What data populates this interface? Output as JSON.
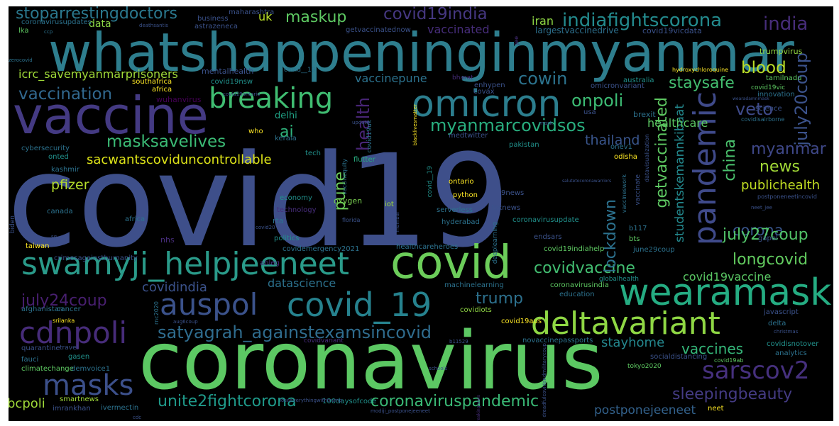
{
  "words": [
    {
      "text": "covid19",
      "color": "#3e4f8a"
    },
    {
      "text": "coronavirus",
      "color": "#5cc863"
    },
    {
      "text": "whatshappeninginmyanmar",
      "color": "#2e7e8e"
    },
    {
      "text": "vaccine",
      "color": "#443a83"
    },
    {
      "text": "omicron",
      "color": "#2c7e8e"
    },
    {
      "text": "covid",
      "color": "#6ccd5a"
    },
    {
      "text": "wearamask",
      "color": "#25ac82"
    },
    {
      "text": "swamyji_helpjeeneet",
      "color": "#2a9b8a"
    },
    {
      "text": "deltavariant",
      "color": "#8fd744"
    },
    {
      "text": "covid_19",
      "color": "#26828e"
    },
    {
      "text": "breaking",
      "color": "#40bd72"
    },
    {
      "text": "auspol",
      "color": "#3b528b"
    },
    {
      "text": "cdnpoli",
      "color": "#472c7a"
    },
    {
      "text": "pandemic",
      "color": "#3f4a8a"
    },
    {
      "text": "sarscov2",
      "color": "#46307e"
    },
    {
      "text": "masks",
      "color": "#3c508b"
    },
    {
      "text": "satyagrah_againstexamsincovid",
      "color": "#2f6c8e"
    },
    {
      "text": "coronaviruspandemic",
      "color": "#3aba76"
    },
    {
      "text": "unite2fightcorona",
      "color": "#1f9a8a"
    },
    {
      "text": "sleepingbeauty",
      "color": "#443b84"
    },
    {
      "text": "vaccines",
      "color": "#35b779"
    },
    {
      "text": "stoparrestingdoctors",
      "color": "#2a788e"
    },
    {
      "text": "indiafightscorona",
      "color": "#238a8d"
    },
    {
      "text": "covid19india",
      "color": "#453781"
    },
    {
      "text": "maskup",
      "color": "#5ec962"
    },
    {
      "text": "india",
      "color": "#472d7b"
    },
    {
      "text": "july20coup",
      "color": "#3b528b"
    },
    {
      "text": "masksavelives",
      "color": "#3bbb75"
    },
    {
      "text": "vaccination",
      "color": "#31688e"
    },
    {
      "text": "cowin",
      "color": "#2c738e"
    },
    {
      "text": "onpoli",
      "color": "#3dbc74"
    },
    {
      "text": "blood",
      "color": "#bade28"
    },
    {
      "text": "staysafe",
      "color": "#44bf70"
    },
    {
      "text": "myanmarcovidsos",
      "color": "#29af7f"
    },
    {
      "text": "trump",
      "color": "#2d718e"
    },
    {
      "text": "health",
      "color": "#482576"
    },
    {
      "text": "veto",
      "color": "#3e4a89"
    },
    {
      "text": "getvaccinated",
      "color": "#5ec962"
    },
    {
      "text": "china",
      "color": "#4ac16d"
    },
    {
      "text": "myanmar",
      "color": "#3f4889"
    },
    {
      "text": "news",
      "color": "#a2da37"
    },
    {
      "text": "publichealth",
      "color": "#c2df23"
    },
    {
      "text": "corona",
      "color": "#39558c"
    },
    {
      "text": "july27coup",
      "color": "#52c569"
    },
    {
      "text": "longcovid",
      "color": "#62cb5f"
    },
    {
      "text": "covidvaccine",
      "color": "#42be71"
    },
    {
      "text": "covid19vaccine",
      "color": "#5ac864"
    },
    {
      "text": "july24coup",
      "color": "#481f70"
    },
    {
      "text": "lockdown",
      "color": "#2c718e"
    },
    {
      "text": "pune",
      "color": "#6ccd5a"
    },
    {
      "text": "ai",
      "color": "#2fb47c"
    },
    {
      "text": "pfizer",
      "color": "#b5de2b"
    },
    {
      "text": "sacwantscoviduncontrollable",
      "color": "#dde318"
    },
    {
      "text": "bcpoli",
      "color": "#a0da39"
    },
    {
      "text": "postponejeeneet",
      "color": "#33628d"
    },
    {
      "text": "studentskemannkibaat",
      "color": "#23898e"
    },
    {
      "text": "thailand",
      "color": "#39558c"
    },
    {
      "text": "healthcare",
      "color": "#5cc863"
    },
    {
      "text": "covidindia",
      "color": "#3b528b"
    },
    {
      "text": "datascience",
      "color": "#2c728e"
    },
    {
      "text": "stayhome",
      "color": "#24878e"
    },
    {
      "text": "icrc_savemyanmarprisoners",
      "color": "#a0da39"
    },
    {
      "text": "vaccinated",
      "color": "#472d7b"
    },
    {
      "text": "vaccinepune",
      "color": "#2c728e"
    },
    {
      "text": "iran",
      "color": "#8fd744"
    },
    {
      "text": "uk",
      "color": "#b8de29"
    },
    {
      "text": "data",
      "color": "#8bd646"
    },
    {
      "text": "delhi",
      "color": "#20a386"
    },
    {
      "text": "largestvaccinedrive",
      "color": "#2d708e"
    },
    {
      "text": "covid19vicdata",
      "color": "#3b528b"
    },
    {
      "text": "trumpvirus",
      "color": "#93d741"
    },
    {
      "text": "mentalhealth",
      "color": "#3b528b"
    },
    {
      "text": "southafrica",
      "color": "#fde725"
    },
    {
      "text": "africa",
      "color": "#fde725"
    },
    {
      "text": "wuhanvirus",
      "color": "#440154"
    },
    {
      "text": "covid19nsw",
      "color": "#21918c"
    },
    {
      "text": "covax",
      "color": "#3b528b"
    },
    {
      "text": "enhypen",
      "color": "#3b528b"
    },
    {
      "text": "omicronvariant",
      "color": "#3b528b"
    },
    {
      "text": "tamilnadu",
      "color": "#5ec962"
    },
    {
      "text": "hydroxychloroquine",
      "color": "#fde725"
    },
    {
      "text": "australia",
      "color": "#21918c"
    },
    {
      "text": "innovation",
      "color": "#2c728e"
    },
    {
      "text": "science",
      "color": "#3b528b"
    },
    {
      "text": "tech",
      "color": "#21918c"
    },
    {
      "text": "who",
      "color": "#fde725"
    },
    {
      "text": "usa",
      "color": "#3b528b"
    },
    {
      "text": "brexit",
      "color": "#2c728e"
    },
    {
      "text": "kerala",
      "color": "#2c728e"
    },
    {
      "text": "medtwitter",
      "color": "#3b528b"
    },
    {
      "text": "cybersecurity",
      "color": "#2c728e"
    },
    {
      "text": "onted",
      "color": "#21918c"
    },
    {
      "text": "flutter",
      "color": "#28ae80"
    },
    {
      "text": "pakistan",
      "color": "#21918c"
    },
    {
      "text": "odisha",
      "color": "#fde725"
    },
    {
      "text": "onev1",
      "color": "#2c728e"
    },
    {
      "text": "kashmir",
      "color": "#2c728e"
    },
    {
      "text": "economy",
      "color": "#21918c"
    },
    {
      "text": "oxygen",
      "color": "#7ad151"
    },
    {
      "text": "iot",
      "color": "#a0da39"
    },
    {
      "text": "ontario",
      "color": "#fde725"
    },
    {
      "text": "python",
      "color": "#fde725"
    },
    {
      "text": "9news",
      "color": "#3b528b"
    },
    {
      "text": "canada",
      "color": "#2c728e"
    },
    {
      "text": "africa",
      "color": "#fde725"
    },
    {
      "text": "rta",
      "color": "#2c728e"
    },
    {
      "text": "serverless",
      "color": "#2c728e"
    },
    {
      "text": "foxnews",
      "color": "#2c728e"
    },
    {
      "text": "coronavirusupdate",
      "color": "#3b528b"
    },
    {
      "text": "technology",
      "color": "#21918c"
    },
    {
      "text": "florida",
      "color": "#472d7b"
    },
    {
      "text": "hyderabad",
      "color": "#3b528b"
    },
    {
      "text": "b117",
      "color": "#2c728e"
    },
    {
      "text": "bts",
      "color": "#2c728e"
    },
    {
      "text": "endsars",
      "color": "#5ec962"
    },
    {
      "text": "nhs",
      "color": "#3b528b"
    },
    {
      "text": "politics",
      "color": "#472d7b"
    },
    {
      "text": "gapol",
      "color": "#21918c"
    },
    {
      "text": "taiwan",
      "color": "#3b528b"
    },
    {
      "text": "covidemergency2021",
      "color": "#fde725"
    },
    {
      "text": "healthcareheroes",
      "color": "#2c728e"
    },
    {
      "text": "covid19indiahelp",
      "color": "#2c728e"
    },
    {
      "text": "globalhealth",
      "color": "#5ec962"
    },
    {
      "text": "crimesagainsthumanity",
      "color": "#21918c"
    },
    {
      "text": "ableg",
      "color": "#3b528b"
    },
    {
      "text": "machinelearning",
      "color": "#472d7b"
    },
    {
      "text": "coronavirusindia",
      "color": "#2c728e"
    },
    {
      "text": "education",
      "color": "#5ec962"
    },
    {
      "text": "javascript",
      "color": "#2c728e"
    },
    {
      "text": "afghanistan",
      "color": "#3b528b"
    },
    {
      "text": "cancer",
      "color": "#2c728e"
    },
    {
      "text": "covidiots",
      "color": "#2c728e"
    },
    {
      "text": "covid19aus",
      "color": "#8fd744"
    },
    {
      "text": "delta",
      "color": "#fde725"
    },
    {
      "text": "srilanka",
      "color": "#2c728e"
    },
    {
      "text": "quarantine",
      "color": "#fde725"
    },
    {
      "text": "travel",
      "color": "#3b528b"
    },
    {
      "text": "novaccinepassports",
      "color": "#3b528b"
    },
    {
      "text": "covidisnotover",
      "color": "#2c728e"
    },
    {
      "text": "analytics",
      "color": "#21918c"
    },
    {
      "text": "fauci",
      "color": "#2c728e"
    },
    {
      "text": "gasen",
      "color": "#2c728e"
    },
    {
      "text": "socialdistancing",
      "color": "#21918c"
    },
    {
      "text": "covid19ab",
      "color": "#3b528b"
    },
    {
      "text": "climatechange",
      "color": "#5ec962"
    },
    {
      "text": "demvoice1",
      "color": "#5ec962"
    },
    {
      "text": "biden",
      "color": "#2c728e"
    },
    {
      "text": "smartnews",
      "color": "#3b528b"
    },
    {
      "text": "100daysofcode",
      "color": "#a0da39"
    },
    {
      "text": "imrankhan",
      "color": "#21918c"
    },
    {
      "text": "ivermectin",
      "color": "#3b528b"
    },
    {
      "text": "neet",
      "color": "#2c728e"
    },
    {
      "text": "getvaccinatednow",
      "color": "#fde725"
    },
    {
      "text": "maharashtra",
      "color": "#3b528b"
    },
    {
      "text": "business",
      "color": "#3b528b"
    },
    {
      "text": "astrazeneca",
      "color": "#3b528b"
    },
    {
      "text": "coronavirusupdates",
      "color": "#3b528b"
    },
    {
      "text": "lka",
      "color": "#2c728e"
    },
    {
      "text": "ccp",
      "color": "#5ec962"
    },
    {
      "text": "deathsantis",
      "color": "#2c728e"
    },
    {
      "text": "zerocovid",
      "color": "#3b528b"
    },
    {
      "text": "vaccinequity",
      "color": "#2c728e"
    },
    {
      "text": "covid19uk",
      "color": "#2c728e"
    },
    {
      "text": "tokyo2020",
      "color": "#2c728e"
    },
    {
      "text": "covid19vic",
      "color": "#5ec962"
    },
    {
      "text": "covid__19",
      "color": "#5ec962"
    },
    {
      "text": "deeplearning",
      "color": "#21918c"
    },
    {
      "text": "vaccinate",
      "color": "#2c728e"
    },
    {
      "text": "vaccineswork",
      "color": "#3b528b"
    },
    {
      "text": "datavisualization",
      "color": "#2c728e"
    },
    {
      "text": "postponeneetincovid",
      "color": "#3b528b"
    },
    {
      "text": "covidisairborne",
      "color": "#3b528b"
    },
    {
      "text": "breakingnews",
      "color": "#2c728e"
    },
    {
      "text": "bharat",
      "color": "#472d7b"
    },
    {
      "text": "jee",
      "color": "#472d7b"
    },
    {
      "text": "mask",
      "color": "#472d7b"
    },
    {
      "text": "june29coup",
      "color": "#3b528b"
    },
    {
      "text": "neet_jee",
      "color": "#2c728e"
    },
    {
      "text": "covid19ontario",
      "color": "#3b528b"
    },
    {
      "text": "blacklivesmatter",
      "color": "#3b528b"
    },
    {
      "text": "update",
      "color": "#fde725"
    },
    {
      "text": "cdc",
      "color": "#3b528b"
    },
    {
      "text": "modiji_postponejeeneet",
      "color": "#3b528b"
    },
    {
      "text": "loseeverythingwithtrump",
      "color": "#3b528b"
    },
    {
      "text": "schools",
      "color": "#3b528b"
    },
    {
      "text": "covid20",
      "color": "#3b528b"
    },
    {
      "text": "christmas",
      "color": "#3b528b"
    },
    {
      "text": "aug6coup",
      "color": "#3b528b"
    },
    {
      "text": "rnc2020",
      "color": "#3b528b"
    },
    {
      "text": "mumbai",
      "color": "#2c728e"
    },
    {
      "text": "b11529",
      "color": "#3b528b"
    },
    {
      "text": "covidvariant",
      "color": "#3b528b"
    },
    {
      "text": "dreadfulcovidandmilitarycoup",
      "color": "#472d7b"
    },
    {
      "text": "wearadamnmask",
      "color": "#3b528b"
    },
    {
      "text": "salutetocoronawarriors",
      "color": "#3b528b"
    },
    {
      "text": "sg",
      "color": "#3b528b"
    },
    {
      "text": "covid__19",
      "color": "#3b528b"
    },
    {
      "text": "1",
      "color": "#2c728e"
    }
  ]
}
